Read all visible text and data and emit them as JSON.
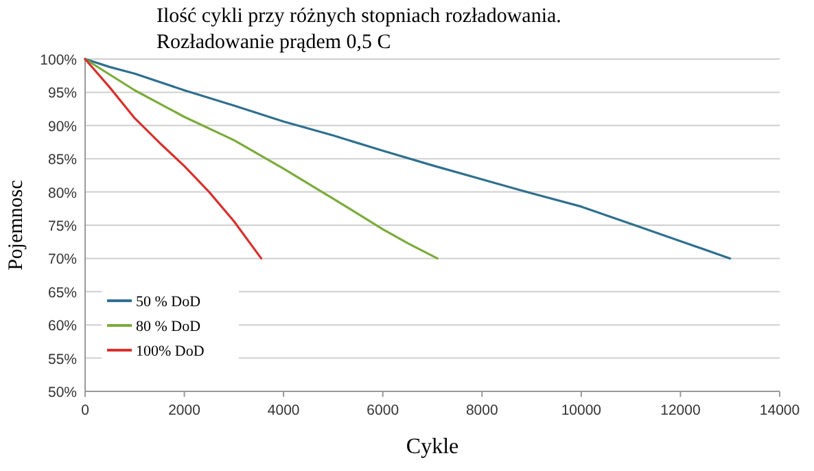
{
  "chart_data": {
    "type": "line",
    "title": "Ilość cykli przy różnych stopniach rozładowania.",
    "subtitle": "Rozładowanie prądem 0,5 C",
    "xlabel": "Cykle",
    "ylabel": "Pojemnosc",
    "xlim": [
      0,
      14000
    ],
    "xticks": [
      0,
      2000,
      4000,
      6000,
      8000,
      10000,
      12000,
      14000
    ],
    "ylim": [
      50,
      100
    ],
    "yticks": [
      {
        "value": 50,
        "label": "50%"
      },
      {
        "value": 55,
        "label": "55%"
      },
      {
        "value": 60,
        "label": "60%"
      },
      {
        "value": 65,
        "label": "65%"
      },
      {
        "value": 70,
        "label": "70%"
      },
      {
        "value": 75,
        "label": "75%"
      },
      {
        "value": 80,
        "label": "80%"
      },
      {
        "value": 85,
        "label": "85%"
      },
      {
        "value": 90,
        "label": "90%"
      },
      {
        "value": 95,
        "label": "95%"
      },
      {
        "value": 100,
        "label": "100%"
      }
    ],
    "grid": "y",
    "legend": "bottom left",
    "marker": "none",
    "line_style": "solid",
    "series": [
      {
        "name": "50 % DoD",
        "color": "#2f6f8f",
        "x": [
          0,
          500,
          1000,
          2000,
          3000,
          4000,
          5000,
          6000,
          7000,
          8000,
          9000,
          10000,
          11000,
          12000,
          13000
        ],
        "values": [
          100,
          98.8,
          97.8,
          95.3,
          93,
          90.6,
          88.5,
          86.2,
          84,
          81.9,
          79.8,
          77.8,
          75.2,
          72.6,
          70
        ]
      },
      {
        "name": "80 % DoD",
        "color": "#7aab3a",
        "x": [
          0,
          1000,
          2000,
          3000,
          4000,
          5000,
          6000,
          6500,
          7100
        ],
        "values": [
          100,
          95.3,
          91.3,
          87.8,
          83.5,
          79,
          74.4,
          72.3,
          70
        ]
      },
      {
        "name": "100% DoD",
        "color": "#d9302c",
        "x": [
          0,
          500,
          1000,
          1500,
          2000,
          2500,
          3000,
          3550
        ],
        "values": [
          100,
          95.7,
          91.1,
          87.4,
          83.9,
          80,
          75.6,
          70
        ]
      }
    ]
  }
}
